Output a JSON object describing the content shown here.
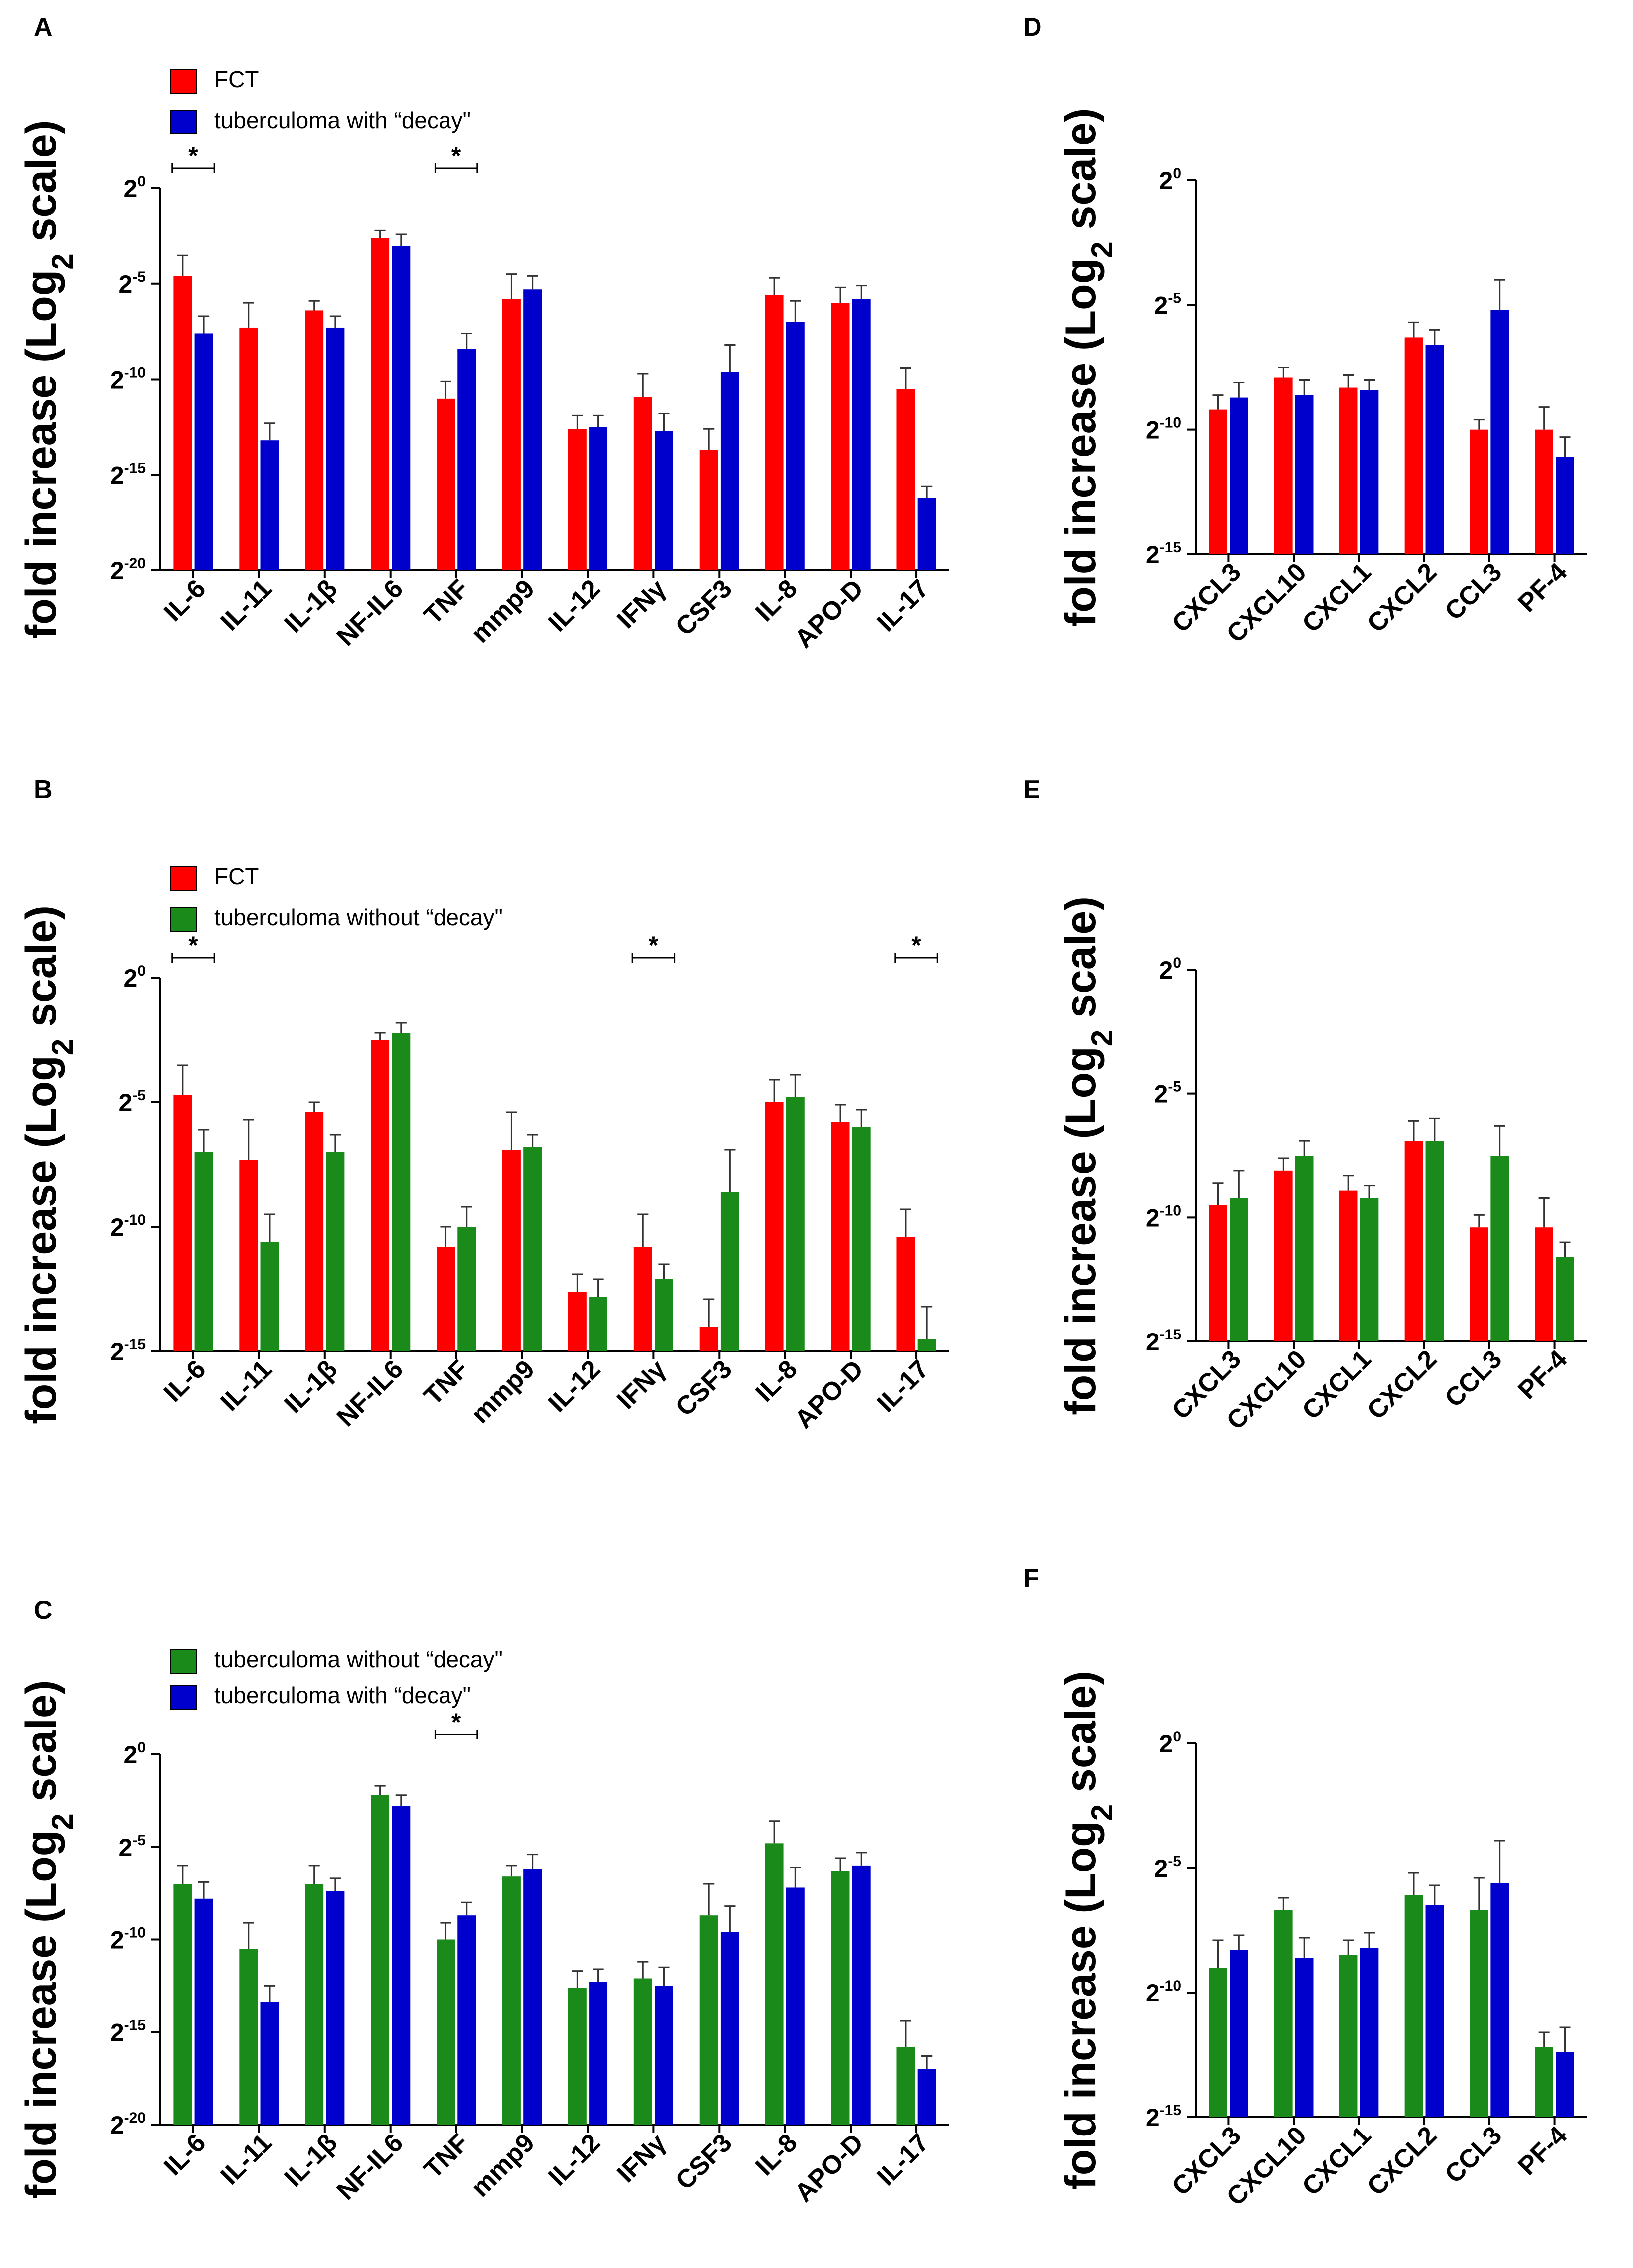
{
  "colors": {
    "FCT": "#ff0000",
    "with_decay": "#0000cc",
    "without_decay": "#1a8a1a",
    "axis": "#000000"
  },
  "chart_data": [
    {
      "panel": "A",
      "type": "bar",
      "title": "",
      "ylabel_main": "fold increase (Log",
      "ylabel_sub": "2",
      "ylabel_end": " scale)",
      "yscale": "log2",
      "ylim": [
        -20,
        0
      ],
      "yticks": [
        {
          "base": "2",
          "exp": "0",
          "value": 0
        },
        {
          "base": "2",
          "exp": "-5",
          "value": -5
        },
        {
          "base": "2",
          "exp": "-10",
          "value": -10
        },
        {
          "base": "2",
          "exp": "-15",
          "value": -15
        },
        {
          "base": "2",
          "exp": "-20",
          "value": -20
        }
      ],
      "categories": [
        "IL-6",
        "IL-11",
        "IL-1β",
        "NF-IL6",
        "TNF",
        "mmp9",
        "IL-12",
        "IFNγ",
        "CSF3",
        "IL-8",
        "APO-D",
        "IL-17"
      ],
      "legend": [
        "FCT",
        "tuberculoma with “decay\""
      ],
      "series": [
        {
          "name": "FCT",
          "color": "#ff0000",
          "values": [
            -4.6,
            -7.3,
            -6.4,
            -2.6,
            -11.0,
            -5.8,
            -12.6,
            -10.9,
            -13.7,
            -5.6,
            -6.0,
            -10.5
          ],
          "errors": [
            1.1,
            1.3,
            0.5,
            0.4,
            0.9,
            1.3,
            0.7,
            1.2,
            1.1,
            0.9,
            0.8,
            1.1
          ]
        },
        {
          "name": "tuberculoma with “decay\"",
          "color": "#0000cc",
          "values": [
            -7.6,
            -13.2,
            -7.3,
            -3.0,
            -8.4,
            -5.3,
            -12.5,
            -12.7,
            -9.6,
            -7.0,
            -5.8,
            -16.2
          ],
          "errors": [
            0.9,
            0.9,
            0.6,
            0.6,
            0.8,
            0.7,
            0.6,
            0.9,
            1.4,
            1.1,
            0.7,
            0.6
          ]
        }
      ],
      "significance": [
        {
          "category": "IL-6",
          "label": "*"
        },
        {
          "category": "TNF",
          "label": "*"
        }
      ]
    },
    {
      "panel": "B",
      "type": "bar",
      "title": "",
      "ylabel_main": "fold increase (Log",
      "ylabel_sub": "2",
      "ylabel_end": " scale)",
      "yscale": "log2",
      "ylim": [
        -15,
        0
      ],
      "yticks": [
        {
          "base": "2",
          "exp": "0",
          "value": 0
        },
        {
          "base": "2",
          "exp": "-5",
          "value": -5
        },
        {
          "base": "2",
          "exp": "-10",
          "value": -10
        },
        {
          "base": "2",
          "exp": "-15",
          "value": -15
        }
      ],
      "categories": [
        "IL-6",
        "IL-11",
        "IL-1β",
        "NF-IL6",
        "TNF",
        "mmp9",
        "IL-12",
        "IFNγ",
        "CSF3",
        "IL-8",
        "APO-D",
        "IL-17"
      ],
      "legend": [
        "FCT",
        "tuberculoma without “decay\""
      ],
      "series": [
        {
          "name": "FCT",
          "color": "#ff0000",
          "values": [
            -4.7,
            -7.3,
            -5.4,
            -2.5,
            -10.8,
            -6.9,
            -12.6,
            -10.8,
            -14.0,
            -5.0,
            -5.8,
            -10.4
          ],
          "errors": [
            1.2,
            1.6,
            0.4,
            0.3,
            0.8,
            1.5,
            0.7,
            1.3,
            1.1,
            0.9,
            0.7,
            1.1
          ]
        },
        {
          "name": "tuberculoma without “decay\"",
          "color": "#1a8a1a",
          "values": [
            -7.0,
            -10.6,
            -7.0,
            -2.2,
            -10.0,
            -6.8,
            -12.8,
            -12.1,
            -8.6,
            -4.8,
            -6.0,
            -14.5
          ],
          "errors": [
            0.9,
            1.1,
            0.7,
            0.4,
            0.8,
            0.5,
            0.7,
            0.6,
            1.7,
            0.9,
            0.7,
            1.3
          ]
        }
      ],
      "significance": [
        {
          "category": "IL-6",
          "label": "*"
        },
        {
          "category": "IFNγ",
          "label": "*"
        },
        {
          "category": "IL-17",
          "label": "*"
        }
      ]
    },
    {
      "panel": "C",
      "type": "bar",
      "title": "",
      "ylabel_main": "fold increase (Log",
      "ylabel_sub": "2",
      "ylabel_end": " scale)",
      "yscale": "log2",
      "ylim": [
        -20,
        0
      ],
      "yticks": [
        {
          "base": "2",
          "exp": "0",
          "value": 0
        },
        {
          "base": "2",
          "exp": "-5",
          "value": -5
        },
        {
          "base": "2",
          "exp": "-10",
          "value": -10
        },
        {
          "base": "2",
          "exp": "-15",
          "value": -15
        },
        {
          "base": "2",
          "exp": "-20",
          "value": -20
        }
      ],
      "categories": [
        "IL-6",
        "IL-11",
        "IL-1β",
        "NF-IL6",
        "TNF",
        "mmp9",
        "IL-12",
        "IFNγ",
        "CSF3",
        "IL-8",
        "APO-D",
        "IL-17"
      ],
      "legend": [
        "tuberculoma without “decay\"",
        "tuberculoma with “decay\""
      ],
      "series": [
        {
          "name": "tuberculoma without “decay\"",
          "color": "#1a8a1a",
          "values": [
            -7.0,
            -10.5,
            -7.0,
            -2.2,
            -10.0,
            -6.6,
            -12.6,
            -12.1,
            -8.7,
            -4.8,
            -6.3,
            -15.8
          ],
          "errors": [
            1.0,
            1.4,
            1.0,
            0.5,
            0.9,
            0.6,
            0.9,
            0.9,
            1.7,
            1.2,
            0.7,
            1.4
          ]
        },
        {
          "name": "tuberculoma with “decay\"",
          "color": "#0000cc",
          "values": [
            -7.8,
            -13.4,
            -7.4,
            -2.8,
            -8.7,
            -6.2,
            -12.3,
            -12.5,
            -9.6,
            -7.2,
            -6.0,
            -17.0
          ],
          "errors": [
            0.9,
            0.9,
            0.7,
            0.6,
            0.7,
            0.8,
            0.7,
            1.0,
            1.4,
            1.1,
            0.7,
            0.7
          ]
        }
      ],
      "significance": [
        {
          "category": "TNF",
          "label": "*"
        }
      ]
    },
    {
      "panel": "D",
      "type": "bar",
      "title": "",
      "ylabel_main": "fold increase (Log",
      "ylabel_sub": "2",
      "ylabel_end": " scale)",
      "yscale": "log2",
      "ylim": [
        -15,
        0
      ],
      "yticks": [
        {
          "base": "2",
          "exp": "0",
          "value": 0
        },
        {
          "base": "2",
          "exp": "-5",
          "value": -5
        },
        {
          "base": "2",
          "exp": "-10",
          "value": -10
        },
        {
          "base": "2",
          "exp": "-15",
          "value": -15
        }
      ],
      "categories": [
        "CXCL3",
        "CXCL10",
        "CXCL1",
        "CXCL2",
        "CCL3",
        "PF-4"
      ],
      "legend": [],
      "series": [
        {
          "name": "FCT",
          "color": "#ff0000",
          "values": [
            -9.2,
            -7.9,
            -8.3,
            -6.3,
            -10.0,
            -10.0
          ],
          "errors": [
            0.6,
            0.4,
            0.5,
            0.6,
            0.4,
            0.9
          ]
        },
        {
          "name": "tuberculoma with “decay\"",
          "color": "#0000cc",
          "values": [
            -8.7,
            -8.6,
            -8.4,
            -6.6,
            -5.2,
            -11.1
          ],
          "errors": [
            0.6,
            0.6,
            0.4,
            0.6,
            1.2,
            0.8
          ]
        }
      ],
      "significance": []
    },
    {
      "panel": "E",
      "type": "bar",
      "title": "",
      "ylabel_main": "fold increase (Log",
      "ylabel_sub": "2",
      "ylabel_end": " scale)",
      "yscale": "log2",
      "ylim": [
        -15,
        0
      ],
      "yticks": [
        {
          "base": "2",
          "exp": "0",
          "value": 0
        },
        {
          "base": "2",
          "exp": "-5",
          "value": -5
        },
        {
          "base": "2",
          "exp": "-10",
          "value": -10
        },
        {
          "base": "2",
          "exp": "-15",
          "value": -15
        }
      ],
      "categories": [
        "CXCL3",
        "CXCL10",
        "CXCL1",
        "CXCL2",
        "CCL3",
        "PF-4"
      ],
      "legend": [],
      "series": [
        {
          "name": "FCT",
          "color": "#ff0000",
          "values": [
            -9.5,
            -8.1,
            -8.9,
            -6.9,
            -10.4,
            -10.4
          ],
          "errors": [
            0.9,
            0.5,
            0.6,
            0.8,
            0.5,
            1.2
          ]
        },
        {
          "name": "tuberculoma without “decay\"",
          "color": "#1a8a1a",
          "values": [
            -9.2,
            -7.5,
            -9.2,
            -6.9,
            -7.5,
            -11.6
          ],
          "errors": [
            1.1,
            0.6,
            0.5,
            0.9,
            1.2,
            0.6
          ]
        }
      ],
      "significance": []
    },
    {
      "panel": "F",
      "type": "bar",
      "title": "",
      "ylabel_main": "fold increase (Log",
      "ylabel_sub": "2",
      "ylabel_end": " scale)",
      "yscale": "log2",
      "ylim": [
        -15,
        0
      ],
      "yticks": [
        {
          "base": "2",
          "exp": "0",
          "value": 0
        },
        {
          "base": "2",
          "exp": "-5",
          "value": -5
        },
        {
          "base": "2",
          "exp": "-10",
          "value": -10
        },
        {
          "base": "2",
          "exp": "-15",
          "value": -15
        }
      ],
      "categories": [
        "CXCL3",
        "CXCL10",
        "CXCL1",
        "CXCL2",
        "CCL3",
        "PF-4"
      ],
      "legend": [],
      "series": [
        {
          "name": "tuberculoma without “decay\"",
          "color": "#1a8a1a",
          "values": [
            -9.0,
            -6.7,
            -8.5,
            -6.1,
            -6.7,
            -12.2
          ],
          "errors": [
            1.1,
            0.5,
            0.6,
            0.9,
            1.3,
            0.6
          ]
        },
        {
          "name": "tuberculoma with “decay\"",
          "color": "#0000cc",
          "values": [
            -8.3,
            -8.6,
            -8.2,
            -6.5,
            -5.6,
            -12.4
          ],
          "errors": [
            0.6,
            0.8,
            0.6,
            0.8,
            1.7,
            1.0
          ]
        }
      ],
      "significance": []
    }
  ]
}
